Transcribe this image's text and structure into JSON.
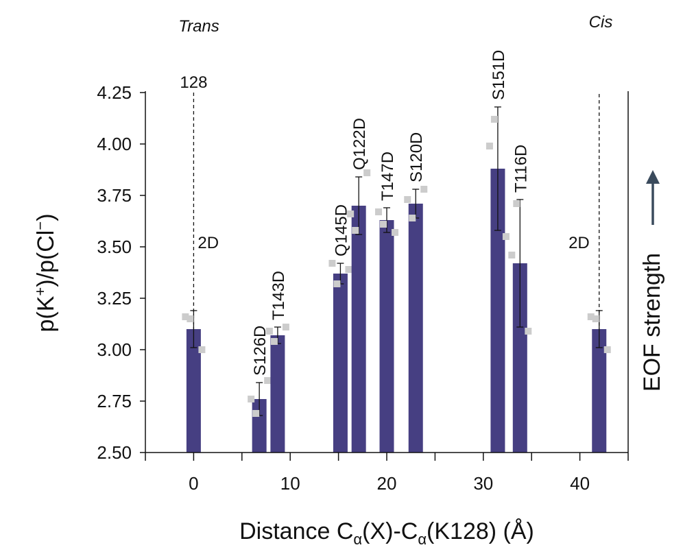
{
  "chart_data": {
    "type": "bar",
    "xlabel_parts": [
      "Distance C",
      "α",
      "(X)-C",
      "α",
      "(K128) (Å)"
    ],
    "ylabel_parts": [
      "p(K",
      "+",
      ")/p(Cl",
      "−",
      ")"
    ],
    "xlim": [
      -5,
      45
    ],
    "ylim": [
      2.5,
      4.25
    ],
    "xticks": [
      0,
      10,
      20,
      30,
      40
    ],
    "yticks": [
      "2.50",
      "2.75",
      "3.00",
      "3.25",
      "3.50",
      "3.75",
      "4.00",
      "4.25"
    ],
    "bar_color": "#463f82",
    "point_color": "#cccccc",
    "side_labels": {
      "left": "Trans",
      "right": "Cis"
    },
    "reference_lines": [
      {
        "x": 0,
        "top_label": "128",
        "label": "2D"
      },
      {
        "x": 42,
        "label": "2D"
      }
    ],
    "right_axis": {
      "label": "EOF strength",
      "arrow": "up"
    },
    "bars": [
      {
        "label": "",
        "x": 0.0,
        "value": 3.1,
        "err": 0.09,
        "points": [
          3.16,
          3.15,
          3.0
        ]
      },
      {
        "label": "S126D",
        "x": 6.8,
        "value": 2.76,
        "err": 0.08,
        "points": [
          2.76,
          2.69,
          2.85
        ]
      },
      {
        "label": "T143D",
        "x": 8.7,
        "value": 3.07,
        "err": 0.04,
        "points": [
          3.09,
          3.04,
          3.11
        ]
      },
      {
        "label": "Q145D",
        "x": 15.2,
        "value": 3.37,
        "err": 0.05,
        "points": [
          3.42,
          3.32,
          3.39
        ]
      },
      {
        "label": "Q122D",
        "x": 17.1,
        "value": 3.7,
        "err": 0.14,
        "points": [
          3.66,
          3.58,
          3.86
        ]
      },
      {
        "label": "T147D",
        "x": 20.0,
        "value": 3.63,
        "err": 0.06,
        "points": [
          3.67,
          3.61,
          3.57
        ]
      },
      {
        "label": "S120D",
        "x": 23.0,
        "value": 3.71,
        "err": 0.07,
        "points": [
          3.73,
          3.64,
          3.78
        ]
      },
      {
        "label": "S151D",
        "x": 31.5,
        "value": 3.88,
        "err": 0.3,
        "points": [
          3.99,
          4.12,
          3.55
        ]
      },
      {
        "label": "T116D",
        "x": 33.8,
        "value": 3.42,
        "err": 0.31,
        "points": [
          3.46,
          3.71,
          3.09
        ]
      },
      {
        "label": "",
        "x": 42.0,
        "value": 3.1,
        "err": 0.09,
        "points": [
          3.16,
          3.15,
          3.0
        ]
      }
    ]
  }
}
